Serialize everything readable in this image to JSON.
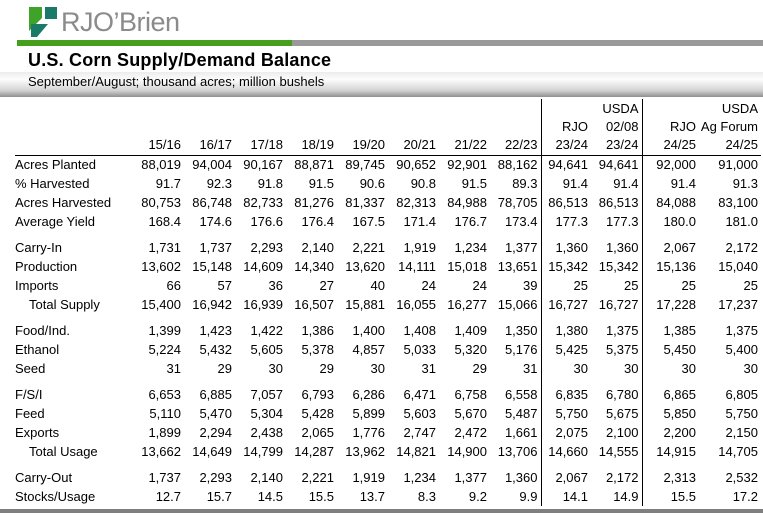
{
  "logo": {
    "text": "RJO’Brien"
  },
  "header": {
    "title": "U.S. Corn Supply/Demand Balance",
    "subtitle": "September/August;  thousand acres;  million bushels"
  },
  "colors": {
    "green": "#459e1c",
    "teal": "#1a7a68",
    "bar_gray": "#999999",
    "logo_text": "#8b8b8b",
    "bottom_bar": "#7f7f7f"
  },
  "table": {
    "header_rows": [
      [
        "",
        "",
        "",
        "",
        "",
        "",
        "",
        "",
        "",
        "",
        "USDA",
        "",
        "USDA"
      ],
      [
        "",
        "",
        "",
        "",
        "",
        "",
        "",
        "",
        "",
        "RJO",
        "02/08",
        "RJO",
        "Ag Forum"
      ],
      [
        "",
        "15/16",
        "16/17",
        "17/18",
        "18/19",
        "19/20",
        "20/21",
        "21/22",
        "22/23",
        "23/24",
        "23/24",
        "24/25",
        "24/25"
      ]
    ],
    "sections": [
      {
        "rows": [
          {
            "label": "Acres Planted",
            "indent": false,
            "values": [
              "88,019",
              "94,004",
              "90,167",
              "88,871",
              "89,745",
              "90,652",
              "92,901",
              "88,162",
              "94,641",
              "94,641",
              "92,000",
              "91,000"
            ]
          },
          {
            "label": "% Harvested",
            "indent": false,
            "values": [
              "91.7",
              "92.3",
              "91.8",
              "91.5",
              "90.6",
              "90.8",
              "91.5",
              "89.3",
              "91.4",
              "91.4",
              "91.4",
              "91.3"
            ]
          },
          {
            "label": "Acres Harvested",
            "indent": false,
            "values": [
              "80,753",
              "86,748",
              "82,733",
              "81,276",
              "81,337",
              "82,313",
              "84,988",
              "78,705",
              "86,513",
              "86,513",
              "84,088",
              "83,100"
            ]
          },
          {
            "label": "Average Yield",
            "indent": false,
            "values": [
              "168.4",
              "174.6",
              "176.6",
              "176.4",
              "167.5",
              "171.4",
              "176.7",
              "173.4",
              "177.3",
              "177.3",
              "180.0",
              "181.0"
            ]
          }
        ]
      },
      {
        "rows": [
          {
            "label": "Carry-In",
            "indent": false,
            "values": [
              "1,731",
              "1,737",
              "2,293",
              "2,140",
              "2,221",
              "1,919",
              "1,234",
              "1,377",
              "1,360",
              "1,360",
              "2,067",
              "2,172"
            ]
          },
          {
            "label": "Production",
            "indent": false,
            "values": [
              "13,602",
              "15,148",
              "14,609",
              "14,340",
              "13,620",
              "14,111",
              "15,018",
              "13,651",
              "15,342",
              "15,342",
              "15,136",
              "15,040"
            ]
          },
          {
            "label": "Imports",
            "indent": false,
            "values": [
              "66",
              "57",
              "36",
              "27",
              "40",
              "24",
              "24",
              "39",
              "25",
              "25",
              "25",
              "25"
            ]
          },
          {
            "label": "Total Supply",
            "indent": true,
            "values": [
              "15,400",
              "16,942",
              "16,939",
              "16,507",
              "15,881",
              "16,055",
              "16,277",
              "15,066",
              "16,727",
              "16,727",
              "17,228",
              "17,237"
            ]
          }
        ]
      },
      {
        "rows": [
          {
            "label": "Food/Ind.",
            "indent": false,
            "values": [
              "1,399",
              "1,423",
              "1,422",
              "1,386",
              "1,400",
              "1,408",
              "1,409",
              "1,350",
              "1,380",
              "1,375",
              "1,385",
              "1,375"
            ]
          },
          {
            "label": "Ethanol",
            "indent": false,
            "values": [
              "5,224",
              "5,432",
              "5,605",
              "5,378",
              "4,857",
              "5,033",
              "5,320",
              "5,176",
              "5,425",
              "5,375",
              "5,450",
              "5,400"
            ]
          },
          {
            "label": "Seed",
            "indent": false,
            "values": [
              "31",
              "29",
              "30",
              "29",
              "30",
              "31",
              "29",
              "31",
              "30",
              "30",
              "30",
              "30"
            ]
          }
        ]
      },
      {
        "rows": [
          {
            "label": "F/S/I",
            "indent": false,
            "values": [
              "6,653",
              "6,885",
              "7,057",
              "6,793",
              "6,286",
              "6,471",
              "6,758",
              "6,558",
              "6,835",
              "6,780",
              "6,865",
              "6,805"
            ]
          },
          {
            "label": "Feed",
            "indent": false,
            "values": [
              "5,110",
              "5,470",
              "5,304",
              "5,428",
              "5,899",
              "5,603",
              "5,670",
              "5,487",
              "5,750",
              "5,675",
              "5,850",
              "5,750"
            ]
          },
          {
            "label": "Exports",
            "indent": false,
            "values": [
              "1,899",
              "2,294",
              "2,438",
              "2,065",
              "1,776",
              "2,747",
              "2,472",
              "1,661",
              "2,075",
              "2,100",
              "2,200",
              "2,150"
            ]
          },
          {
            "label": "Total Usage",
            "indent": true,
            "values": [
              "13,662",
              "14,649",
              "14,799",
              "14,287",
              "13,962",
              "14,821",
              "14,900",
              "13,706",
              "14,660",
              "14,555",
              "14,915",
              "14,705"
            ]
          }
        ]
      },
      {
        "rows": [
          {
            "label": "Carry-Out",
            "indent": false,
            "values": [
              "1,737",
              "2,293",
              "2,140",
              "2,221",
              "1,919",
              "1,234",
              "1,377",
              "1,360",
              "2,067",
              "2,172",
              "2,313",
              "2,532"
            ]
          },
          {
            "label": "Stocks/Usage",
            "indent": false,
            "values": [
              "12.7",
              "15.7",
              "14.5",
              "15.5",
              "13.7",
              "8.3",
              "9.2",
              "9.9",
              "14.1",
              "14.9",
              "15.5",
              "17.2"
            ]
          }
        ]
      }
    ]
  }
}
